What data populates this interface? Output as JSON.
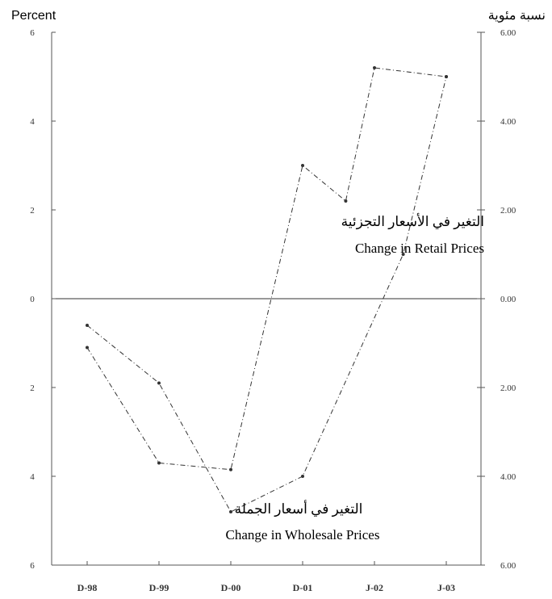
{
  "chart_data": {
    "type": "line",
    "left_axis_label": "Percent",
    "right_axis_label": "نسبة مئوية",
    "categories": [
      "D-98",
      "D-99",
      "D-00",
      "D-01",
      "J-02",
      "J-03"
    ],
    "ylim": [
      -6,
      6
    ],
    "left_ticks": [
      {
        "value": 6,
        "label": "6"
      },
      {
        "value": 4,
        "label": "4"
      },
      {
        "value": 2,
        "label": "2"
      },
      {
        "value": 0,
        "label": "0"
      },
      {
        "value": -2,
        "label": "2"
      },
      {
        "value": -4,
        "label": "4"
      },
      {
        "value": -6,
        "label": "6"
      }
    ],
    "right_ticks": [
      {
        "value": 6,
        "label": "6.00"
      },
      {
        "value": 4,
        "label": "4.00"
      },
      {
        "value": 2,
        "label": "2.00"
      },
      {
        "value": 0,
        "label": "0.00"
      },
      {
        "value": -2,
        "label": "2.00"
      },
      {
        "value": -4,
        "label": "4.00"
      },
      {
        "value": -6,
        "label": "6.00"
      }
    ],
    "series": [
      {
        "name_ar": "التغير في الأسعار التجزئية",
        "name_en": "Change in Retail Prices",
        "color": "#333333",
        "points": [
          {
            "x": 0,
            "y": -0.6
          },
          {
            "x": 1,
            "y": -1.9
          },
          {
            "x": 2,
            "y": -4.8
          },
          {
            "x": 3,
            "y": -4.0
          },
          {
            "x": 4.4,
            "y": 1.0
          },
          {
            "x": 5,
            "y": 5.0
          }
        ]
      },
      {
        "name_ar": "التغير في أسعار الجملة",
        "name_en": "Change in Wholesale Prices",
        "color": "#333333",
        "points": [
          {
            "x": 0,
            "y": -1.1
          },
          {
            "x": 1,
            "y": -3.7
          },
          {
            "x": 2,
            "y": -3.85
          },
          {
            "x": 3,
            "y": 3.0
          },
          {
            "x": 3.6,
            "y": 2.2
          },
          {
            "x": 4,
            "y": 5.2
          },
          {
            "x": 5,
            "y": 5.0
          }
        ]
      }
    ]
  }
}
